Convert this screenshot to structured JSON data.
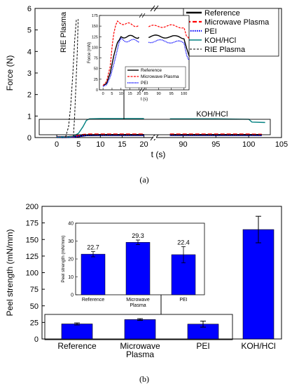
{
  "captions": {
    "a": "(a)",
    "b": "(b)"
  },
  "chart_data": [
    {
      "id": "force-main",
      "type": "line",
      "xlabel": "t (s)",
      "ylabel": "Force (N)",
      "xlim": [
        -5,
        105
      ],
      "ylim": [
        0,
        6
      ],
      "axis_break": "x between 21 and 87",
      "x_ticks": [
        "0",
        "5",
        "10",
        "15",
        "20",
        "90",
        "95",
        "100",
        "105"
      ],
      "y_ticks": [
        "0",
        "1",
        "2",
        "3",
        "4",
        "5",
        "6"
      ],
      "legend": {
        "placement": "top-right",
        "entries": [
          "Reference",
          "Microwave Plasma",
          "PEI",
          "KOH/HCl",
          "RIE Plasma"
        ]
      },
      "annotations": [
        "RIE Plasma",
        "KOH/HCl"
      ],
      "series": [
        {
          "name": "Reference",
          "color": "#000000",
          "style": "solid-thick",
          "points": [
            [
              0,
              0.02
            ],
            [
              2,
              0.02
            ],
            [
              4,
              0.03
            ],
            [
              5,
              0.06
            ],
            [
              6,
              0.09
            ],
            [
              7,
              0.11
            ],
            [
              10,
              0.12
            ],
            [
              15,
              0.12
            ],
            [
              20,
              0.12
            ],
            [
              88,
              0.12
            ],
            [
              95,
              0.12
            ],
            [
              100,
              0.12
            ],
            [
              102,
              0.12
            ]
          ]
        },
        {
          "name": "Microwave Plasma",
          "color": "#ff0000",
          "style": "dashed",
          "points": [
            [
              0,
              0.02
            ],
            [
              2,
              0.03
            ],
            [
              4,
              0.05
            ],
            [
              5,
              0.09
            ],
            [
              6,
              0.13
            ],
            [
              7,
              0.15
            ],
            [
              10,
              0.15
            ],
            [
              15,
              0.15
            ],
            [
              20,
              0.15
            ],
            [
              88,
              0.15
            ],
            [
              95,
              0.15
            ],
            [
              100,
              0.15
            ],
            [
              102,
              0.14
            ]
          ]
        },
        {
          "name": "PEI",
          "color": "#0000ff",
          "style": "dotted",
          "points": [
            [
              0,
              0.02
            ],
            [
              2,
              0.02
            ],
            [
              4,
              0.03
            ],
            [
              5,
              0.06
            ],
            [
              6,
              0.08
            ],
            [
              7,
              0.11
            ],
            [
              10,
              0.11
            ],
            [
              15,
              0.11
            ],
            [
              20,
              0.11
            ],
            [
              88,
              0.11
            ],
            [
              95,
              0.11
            ],
            [
              100,
              0.11
            ],
            [
              102,
              0.1
            ]
          ]
        },
        {
          "name": "KOH/HCl",
          "color": "#008080",
          "style": "solid",
          "points": [
            [
              0,
              0.02
            ],
            [
              3,
              0.03
            ],
            [
              4,
              0.08
            ],
            [
              5,
              0.2
            ],
            [
              6,
              0.5
            ],
            [
              6.8,
              0.8
            ],
            [
              7.5,
              0.87
            ],
            [
              10,
              0.88
            ],
            [
              15,
              0.88
            ],
            [
              20,
              0.88
            ],
            [
              88,
              0.87
            ],
            [
              95,
              0.87
            ],
            [
              100,
              0.85
            ],
            [
              100.5,
              0.72
            ],
            [
              102.5,
              0.7
            ]
          ]
        },
        {
          "name": "RIE Plasma",
          "color": "#000000",
          "style": "dashed-thin",
          "points": [
            [
              2,
              0.02
            ],
            [
              2.7,
              0.5
            ],
            [
              3.2,
              1.5
            ],
            [
              3.7,
              3.0
            ],
            [
              4.1,
              4.5
            ],
            [
              4.5,
              5.5
            ]
          ]
        }
      ],
      "extra_traces": [
        {
          "color": "#000000",
          "style": "dashed-thin",
          "points": [
            [
              3.8,
              0.05
            ],
            [
              4.1,
              1.0
            ],
            [
              4.4,
              2.5
            ],
            [
              4.7,
              4.0
            ],
            [
              4.9,
              5.5
            ]
          ]
        }
      ]
    },
    {
      "id": "force-inset",
      "type": "line",
      "xlabel": "t (s)",
      "ylabel": "Force (mN)",
      "xlim": [
        -2,
        102
      ],
      "ylim": [
        0,
        175
      ],
      "axis_break": "x between 21 and 87",
      "x_ticks": [
        "0",
        "5",
        "10",
        "15",
        "20",
        "85",
        "90",
        "95",
        "100"
      ],
      "y_ticks": [
        "0",
        "25",
        "50",
        "75",
        "100",
        "125",
        "150",
        "175"
      ],
      "legend": {
        "placement": "bottom-right",
        "entries": [
          "Reference",
          "Microwave Plasma",
          "PEI"
        ]
      },
      "series": [
        {
          "name": "Reference",
          "color": "#000000",
          "points": [
            [
              0,
              10
            ],
            [
              2,
              15
            ],
            [
              4,
              40
            ],
            [
              6,
              80
            ],
            [
              8,
              108
            ],
            [
              9,
              115
            ],
            [
              10,
              126
            ],
            [
              12,
              125
            ],
            [
              15,
              125
            ],
            [
              18,
              125
            ],
            [
              20,
              124
            ],
            [
              86,
              125
            ],
            [
              90,
              126
            ],
            [
              95,
              124
            ],
            [
              98,
              125
            ],
            [
              100,
              123
            ],
            [
              101,
              100
            ],
            [
              102,
              80
            ]
          ]
        },
        {
          "name": "Microwave Plasma",
          "color": "#ff0000",
          "points": [
            [
              0,
              10
            ],
            [
              2,
              20
            ],
            [
              4,
              55
            ],
            [
              5,
              100
            ],
            [
              6,
              130
            ],
            [
              7,
              148
            ],
            [
              8,
              160
            ],
            [
              10,
              158
            ],
            [
              12,
              155
            ],
            [
              15,
              154
            ],
            [
              18,
              152
            ],
            [
              20,
              151
            ],
            [
              86,
              148
            ],
            [
              90,
              150
            ],
            [
              95,
              150
            ],
            [
              98,
              149
            ],
            [
              100,
              148
            ],
            [
              101,
              125
            ],
            [
              102,
              120
            ]
          ]
        },
        {
          "name": "PEI",
          "color": "#0000ff",
          "points": [
            [
              0,
              8
            ],
            [
              2,
              12
            ],
            [
              4,
              30
            ],
            [
              6,
              60
            ],
            [
              8,
              95
            ],
            [
              9,
              110
            ],
            [
              10,
              118
            ],
            [
              12,
              115
            ],
            [
              15,
              117
            ],
            [
              18,
              115
            ],
            [
              20,
              113
            ],
            [
              86,
              114
            ],
            [
              90,
              115
            ],
            [
              95,
              113
            ],
            [
              98,
              112
            ],
            [
              100,
              110
            ],
            [
              101,
              85
            ],
            [
              102,
              70
            ]
          ]
        }
      ]
    },
    {
      "id": "peel-main",
      "type": "bar",
      "ylabel": "Peel strength (mN/mm)",
      "categories": [
        "Reference",
        "Microwave\nPlasma",
        "PEI",
        "KOH/HCl"
      ],
      "values": [
        22.7,
        29.3,
        22.4,
        165
      ],
      "errors": [
        1.5,
        1.3,
        4.5,
        20
      ],
      "ylim": [
        0,
        200
      ],
      "y_ticks": [
        "0",
        "25",
        "50",
        "75",
        "100",
        "125",
        "150",
        "175",
        "200"
      ],
      "bar_color": "#0000ff"
    },
    {
      "id": "peel-inset",
      "type": "bar",
      "ylabel": "Peel strength (mN/mm)",
      "categories": [
        "Reference",
        "Microwave\nPlasma",
        "PEI"
      ],
      "values": [
        22.7,
        29.3,
        22.4
      ],
      "value_labels": [
        "22.7",
        "29.3",
        "22.4"
      ],
      "errors": [
        1.5,
        1.3,
        4.5
      ],
      "ylim": [
        0,
        40
      ],
      "y_ticks": [
        "0",
        "10",
        "20",
        "30",
        "40"
      ],
      "bar_color": "#0000ff"
    }
  ]
}
